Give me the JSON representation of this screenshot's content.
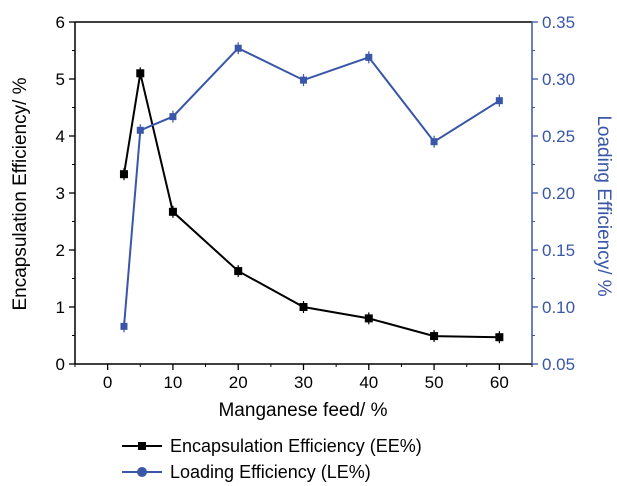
{
  "chart_data": {
    "type": "line",
    "title": "",
    "xlabel": "Manganese feed/ %",
    "ylabel_left": "Encapsulation Efficiency/ %",
    "ylabel_right": "Loading Efficiency/ %",
    "xlim": [
      -5,
      65
    ],
    "ylim_left": [
      0,
      6
    ],
    "ylim_right": [
      0.05,
      0.35
    ],
    "x_ticks": [
      "0",
      "10",
      "20",
      "30",
      "40",
      "50",
      "60"
    ],
    "y_left_ticks": [
      "0",
      "1",
      "2",
      "3",
      "4",
      "5",
      "6"
    ],
    "y_right_ticks": [
      "0.05",
      "0.10",
      "0.15",
      "0.20",
      "0.25",
      "0.30",
      "0.35"
    ],
    "grid": false,
    "legend_position": "bottom",
    "series": [
      {
        "name": "Encapsulation Efficiency (EE%)",
        "axis": "left",
        "color": "#000000",
        "marker": "square",
        "x": [
          2.5,
          5,
          10,
          20,
          30,
          40,
          50,
          60
        ],
        "values": [
          3.33,
          5.1,
          2.67,
          1.63,
          1.0,
          0.8,
          0.49,
          0.47
        ]
      },
      {
        "name": "Loading Efficiency (LE%)",
        "axis": "right",
        "color": "#3a56a8",
        "marker": "circle",
        "x": [
          2.5,
          5,
          10,
          20,
          30,
          40,
          50,
          60
        ],
        "values": [
          0.083,
          0.255,
          0.267,
          0.327,
          0.299,
          0.319,
          0.245,
          0.281
        ]
      }
    ]
  }
}
